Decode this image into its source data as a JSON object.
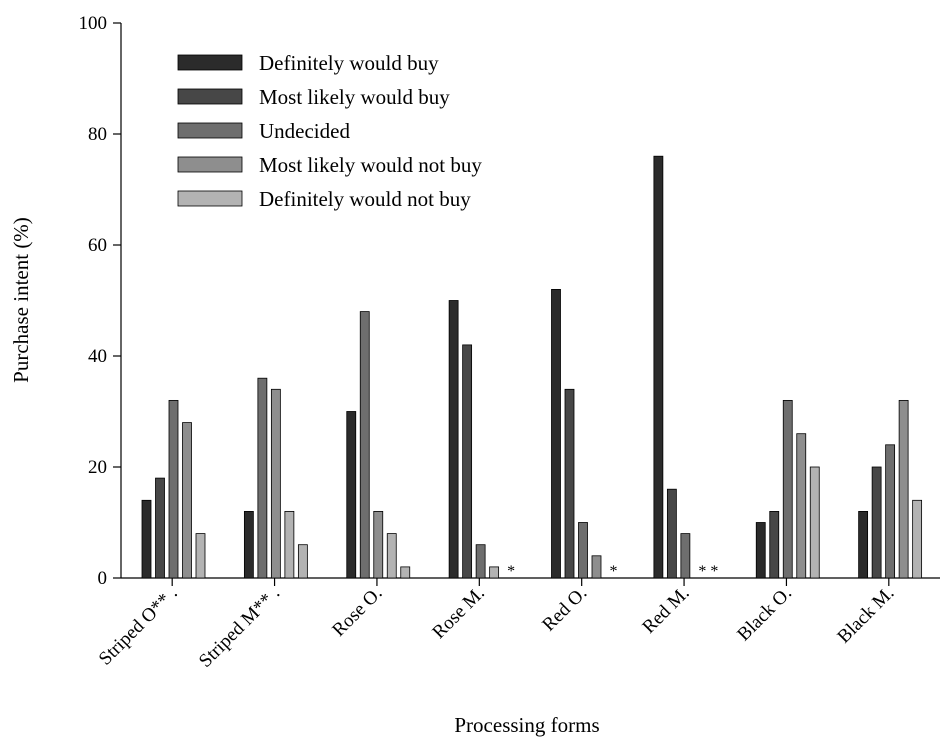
{
  "chart_data": {
    "type": "bar",
    "categories": [
      "Striped O** .",
      "Striped M** .",
      "Rose O.",
      "Rose M.",
      "Red O.",
      "Red M.",
      "Black O.",
      "Black M."
    ],
    "series": [
      {
        "name": "Definitely would buy",
        "color": "#2b2b2b",
        "values": [
          14,
          12,
          30,
          50,
          52,
          76,
          10,
          12
        ]
      },
      {
        "name": "Most likely would buy",
        "color": "#474747",
        "values": [
          18,
          0,
          0,
          42,
          34,
          16,
          12,
          20
        ]
      },
      {
        "name": "Undecided",
        "color": "#6e6e6e",
        "values": [
          32,
          36,
          48,
          6,
          10,
          8,
          32,
          24
        ]
      },
      {
        "name": "Most likely would not buy",
        "color": "#8e8e8e",
        "values": [
          28,
          34,
          12,
          0,
          4,
          0,
          26,
          32
        ]
      },
      {
        "name": "Definitely would not buy",
        "color": "#b3b3b3",
        "values": [
          8,
          12,
          8,
          2,
          0,
          0,
          20,
          14
        ]
      }
    ],
    "extra_bars": {
      "1": [
        6
      ],
      "2": [
        2
      ]
    },
    "star_labels": [
      "*",
      "*",
      "* *"
    ],
    "xlabel": "Processing forms",
    "ylabel": "Purchase intent (%)",
    "ylim": [
      0,
      100
    ],
    "yticks": [
      0,
      20,
      40,
      60,
      80,
      100
    ],
    "grid": false,
    "legend_position": "top-left"
  }
}
